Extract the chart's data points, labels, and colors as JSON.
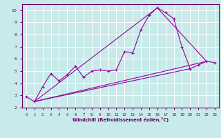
{
  "xlabel": "Windchill (Refroidissement éolien,°C)",
  "bg_color": "#c8eaea",
  "line_color": "#990099",
  "grid_color": "#ffffff",
  "spine_color": "#660066",
  "xlim": [
    -0.5,
    23.5
  ],
  "ylim": [
    2,
    10.5
  ],
  "xticks": [
    0,
    1,
    2,
    3,
    4,
    5,
    6,
    7,
    8,
    9,
    10,
    11,
    12,
    13,
    14,
    15,
    16,
    17,
    18,
    19,
    20,
    21,
    22,
    23
  ],
  "yticks": [
    2,
    3,
    4,
    5,
    6,
    7,
    8,
    9,
    10
  ],
  "series": [
    [
      0,
      2.9
    ],
    [
      1,
      2.5
    ],
    [
      2,
      3.7
    ],
    [
      3,
      4.8
    ],
    [
      4,
      4.2
    ],
    [
      5,
      4.7
    ],
    [
      6,
      5.4
    ],
    [
      7,
      4.5
    ],
    [
      8,
      5.0
    ],
    [
      9,
      5.1
    ],
    [
      10,
      5.0
    ],
    [
      11,
      5.1
    ],
    [
      12,
      6.6
    ],
    [
      13,
      6.5
    ],
    [
      14,
      8.4
    ],
    [
      15,
      9.6
    ],
    [
      16,
      10.2
    ],
    [
      17,
      9.8
    ],
    [
      18,
      9.3
    ],
    [
      19,
      7.0
    ],
    [
      20,
      5.2
    ],
    [
      21,
      5.5
    ],
    [
      22,
      5.8
    ],
    [
      23,
      5.7
    ]
  ],
  "envelope_lines": [
    [
      [
        1,
        22
      ],
      [
        2.5,
        5.8
      ]
    ],
    [
      [
        1,
        16
      ],
      [
        2.5,
        10.2
      ]
    ],
    [
      [
        16,
        22
      ],
      [
        10.2,
        5.8
      ]
    ],
    [
      [
        1,
        20
      ],
      [
        2.5,
        5.2
      ]
    ]
  ]
}
